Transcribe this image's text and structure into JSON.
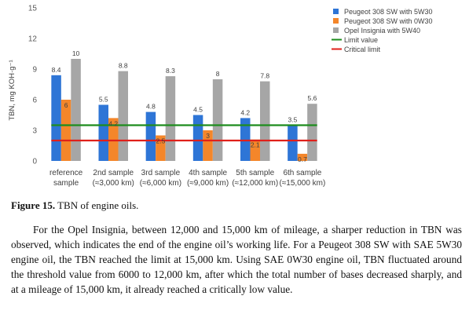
{
  "chart_data": {
    "type": "bar",
    "ylabel": "TBN, mg KOH·g⁻¹",
    "ylim": [
      0,
      15
    ],
    "yticks": [
      0,
      3,
      6,
      9,
      12,
      15
    ],
    "grid": false,
    "legend_position": "top-right",
    "categories": [
      [
        "reference",
        "sample"
      ],
      [
        "2nd sample",
        "(≈3,000 km)"
      ],
      [
        "3rd sample",
        "(≈6,000 km)"
      ],
      [
        "4th sample",
        "(≈9,000 km)"
      ],
      [
        "5th sample",
        "(≈12,000 km)"
      ],
      [
        "6th sample",
        "(≈15,000 km)"
      ]
    ],
    "series": [
      {
        "name": "Peugeot 308 SW with 5W30",
        "color": "#2E75D6",
        "values": [
          8.4,
          5.5,
          4.8,
          4.5,
          4.2,
          3.5
        ],
        "labels": [
          "8.4",
          "5.5",
          "4.8",
          "4.5",
          "4.2",
          "3.5"
        ]
      },
      {
        "name": "Peugeot 308 SW with 0W30",
        "color": "#F4862A",
        "values": [
          6,
          4.2,
          2.5,
          3,
          2.1,
          0.7
        ],
        "labels": [
          "6",
          "4.2",
          "2.5",
          "3",
          "2.1",
          "0.7"
        ]
      },
      {
        "name": "Opel Insignia with 5W40",
        "color": "#A6A6A6",
        "values": [
          10,
          8.8,
          8.3,
          8,
          7.8,
          5.6
        ],
        "labels": [
          "10",
          "8.8",
          "8.3",
          "8",
          "7.8",
          "5.6"
        ]
      }
    ],
    "lines": [
      {
        "name": "Limit value",
        "color": "#1E8C1E",
        "value": 3.5
      },
      {
        "name": "Critical limit",
        "color": "#E0201A",
        "value": 2
      }
    ]
  },
  "caption": {
    "label": "Figure 15.",
    "text": "TBN of engine oils."
  },
  "paragraph": "For the Opel Insignia, between 12,000 and 15,000 km of mileage, a sharper reduction in TBN was observed, which indicates the end of the engine oil’s working life. For a Peugeot 308 SW with SAE 5W30 engine oil, the TBN reached the limit at 15,000 km. Using SAE 0W30 engine oil, TBN fluctuated around the threshold value from 6000 to 12,000 km, after which the total number of bases decreased sharply, and at a mileage of 15,000 km, it already reached a critically low value."
}
